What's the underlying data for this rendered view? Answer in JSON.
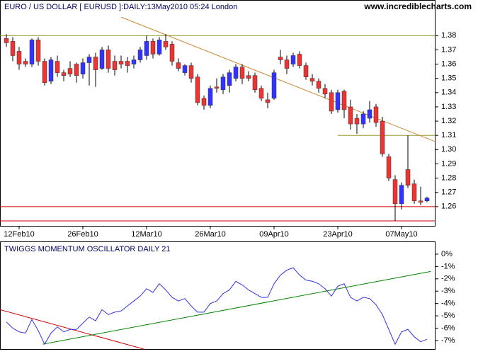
{
  "chart_data": [
    {
      "type": "candlestick",
      "title": "EURO / US DOLLAR [ EURUSD ]:DAILY:13May2010 05:24 London",
      "source": "www.incrediblecharts.com",
      "categories": [
        null,
        null,
        "12Feb10",
        null,
        null,
        null,
        null,
        null,
        null,
        null,
        null,
        null,
        "26Feb10",
        null,
        null,
        null,
        null,
        null,
        null,
        null,
        null,
        null,
        "12Mar10",
        null,
        null,
        null,
        null,
        null,
        null,
        null,
        null,
        null,
        "26Mar10",
        null,
        null,
        null,
        null,
        null,
        null,
        null,
        null,
        null,
        "09Apr10",
        null,
        null,
        null,
        null,
        null,
        null,
        null,
        null,
        null,
        "23Apr10",
        null,
        null,
        null,
        null,
        null,
        null,
        null,
        null,
        null,
        "07May10",
        null,
        null,
        null,
        null
      ],
      "open": [
        1.378,
        1.376,
        1.369,
        1.362,
        1.36,
        1.377,
        1.362,
        1.348,
        1.362,
        1.354,
        1.357,
        1.36,
        1.353,
        1.361,
        1.365,
        1.357,
        1.37,
        1.362,
        1.362,
        1.362,
        1.36,
        1.363,
        1.366,
        1.376,
        1.367,
        1.376,
        1.374,
        1.361,
        1.354,
        1.359,
        1.351,
        1.336,
        1.331,
        1.344,
        1.342,
        1.345,
        1.35,
        1.358,
        1.352,
        1.352,
        1.343,
        1.335,
        1.336,
        1.365,
        1.363,
        1.36,
        1.367,
        1.359,
        1.35,
        1.348,
        1.343,
        1.34,
        1.328,
        1.341,
        1.33,
        1.322,
        1.318,
        1.322,
        1.33,
        1.32,
        1.295,
        1.279,
        1.262,
        1.286,
        1.276,
        1.264,
        1.264
      ],
      "high": [
        1.381,
        1.379,
        1.372,
        1.364,
        1.378,
        1.379,
        1.364,
        1.365,
        1.366,
        1.356,
        1.362,
        1.361,
        1.364,
        1.367,
        1.368,
        1.372,
        1.373,
        1.366,
        1.366,
        1.365,
        1.366,
        1.372,
        1.38,
        1.378,
        1.379,
        1.381,
        1.376,
        1.364,
        1.36,
        1.361,
        1.353,
        1.338,
        1.345,
        1.35,
        1.353,
        1.356,
        1.36,
        1.36,
        1.355,
        1.354,
        1.345,
        1.34,
        1.356,
        1.37,
        1.366,
        1.368,
        1.369,
        1.361,
        1.353,
        1.35,
        1.346,
        1.342,
        1.342,
        1.342,
        1.335,
        1.325,
        1.327,
        1.334,
        1.332,
        1.323,
        1.297,
        1.282,
        1.277,
        1.31,
        1.279,
        1.274,
        1.267
      ],
      "low": [
        1.372,
        1.362,
        1.356,
        1.358,
        1.358,
        1.359,
        1.345,
        1.346,
        1.351,
        1.348,
        1.351,
        1.347,
        1.35,
        1.345,
        1.344,
        1.356,
        1.354,
        1.352,
        1.357,
        1.354,
        1.357,
        1.361,
        1.363,
        1.364,
        1.366,
        1.37,
        1.359,
        1.355,
        1.352,
        1.347,
        1.331,
        1.328,
        1.329,
        1.34,
        1.339,
        1.34,
        1.348,
        1.346,
        1.348,
        1.34,
        1.334,
        1.329,
        1.335,
        1.36,
        1.353,
        1.358,
        1.357,
        1.349,
        1.345,
        1.34,
        1.336,
        1.325,
        1.326,
        1.322,
        1.314,
        1.311,
        1.315,
        1.319,
        1.316,
        1.295,
        1.278,
        1.25,
        1.258,
        1.273,
        1.262,
        1.261,
        1.263
      ],
      "close": [
        1.375,
        1.366,
        1.36,
        1.36,
        1.377,
        1.362,
        1.347,
        1.363,
        1.354,
        1.352,
        1.353,
        1.352,
        1.361,
        1.365,
        1.356,
        1.37,
        1.357,
        1.356,
        1.36,
        1.359,
        1.363,
        1.37,
        1.376,
        1.367,
        1.377,
        1.372,
        1.362,
        1.357,
        1.359,
        1.35,
        1.333,
        1.331,
        1.343,
        1.343,
        1.351,
        1.354,
        1.358,
        1.35,
        1.35,
        1.342,
        1.336,
        1.333,
        1.354,
        1.363,
        1.357,
        1.366,
        1.359,
        1.351,
        1.348,
        1.343,
        1.339,
        1.327,
        1.34,
        1.328,
        1.318,
        1.318,
        1.325,
        1.328,
        1.319,
        1.297,
        1.28,
        1.262,
        1.275,
        1.275,
        1.264,
        1.263,
        1.266
      ],
      "up_color": "#3333ff",
      "down_color": "#ee3333",
      "ylim": [
        1.246,
        1.405
      ],
      "yticks": [
        1.26,
        1.27,
        1.28,
        1.29,
        {
          "value": 1.3,
          "label": "1.30"
        },
        1.31,
        1.32,
        1.33,
        1.34,
        1.35,
        1.36,
        1.37,
        1.38
      ],
      "hlines": [
        {
          "value": 1.38,
          "color": "#999933"
        },
        {
          "value": 1.26,
          "color": "#cc0000"
        },
        {
          "value": 1.25,
          "color": "#cc0000"
        }
      ],
      "trendlines": [
        {
          "points": [
            [
              18,
              1.393
            ],
            [
              67.3,
              1.3056
            ]
          ],
          "color": "#cc8833"
        },
        {
          "points": [
            [
              52,
              1.31
            ],
            [
              67.3,
              1.31
            ]
          ],
          "color": "#999933"
        }
      ]
    },
    {
      "type": "line",
      "title": "TWIGGS MOMENTUM OSCILLATOR DAILY 21",
      "values": [
        -5.5,
        -6.0,
        -6.3,
        -6.4,
        -5.3,
        -6.2,
        -7.3,
        -6.4,
        -5.9,
        -6.3,
        -6.1,
        -6.1,
        -5.6,
        -5.1,
        -5.4,
        -4.5,
        -4.9,
        -4.7,
        -4.6,
        -4.2,
        -3.8,
        -3.4,
        -2.8,
        -3.1,
        -2.4,
        -2.9,
        -3.5,
        -3.8,
        -3.6,
        -4.2,
        -4.7,
        -4.7,
        -4.0,
        -3.8,
        -3.2,
        -2.9,
        -2.2,
        -2.5,
        -2.9,
        -3.2,
        -3.5,
        -3.5,
        -2.4,
        -1.7,
        -1.3,
        -1.1,
        -1.7,
        -2.1,
        -2.2,
        -2.4,
        -2.8,
        -3.4,
        -2.6,
        -2.4,
        -3.5,
        -3.8,
        -3.5,
        -3.6,
        -4.1,
        -4.9,
        -6.1,
        -7.3,
        -6.3,
        -6.1,
        -6.7,
        -7.1,
        -6.9
      ],
      "color": "#3333dd",
      "ylim": [
        -7.75,
        1.03
      ],
      "yticks": [
        {
          "value": 0,
          "label": "0%"
        },
        {
          "value": -1,
          "label": "-1%"
        },
        {
          "value": -2,
          "label": "-2%"
        },
        {
          "value": -3,
          "label": "-3%"
        },
        {
          "value": -4,
          "label": "-4%"
        },
        {
          "value": -5,
          "label": "-5%"
        },
        {
          "value": -6,
          "label": "-6%"
        },
        {
          "value": -7,
          "label": "-7%"
        }
      ],
      "trendlines": [
        {
          "points": [
            [
              -1,
              -4.5
            ],
            [
              21.6,
              -7.7
            ]
          ],
          "color": "#cc0000"
        },
        {
          "points": [
            [
              5.7,
              -7.3
            ],
            [
              66.6,
              -1.4
            ]
          ],
          "color": "#008000"
        }
      ]
    }
  ]
}
